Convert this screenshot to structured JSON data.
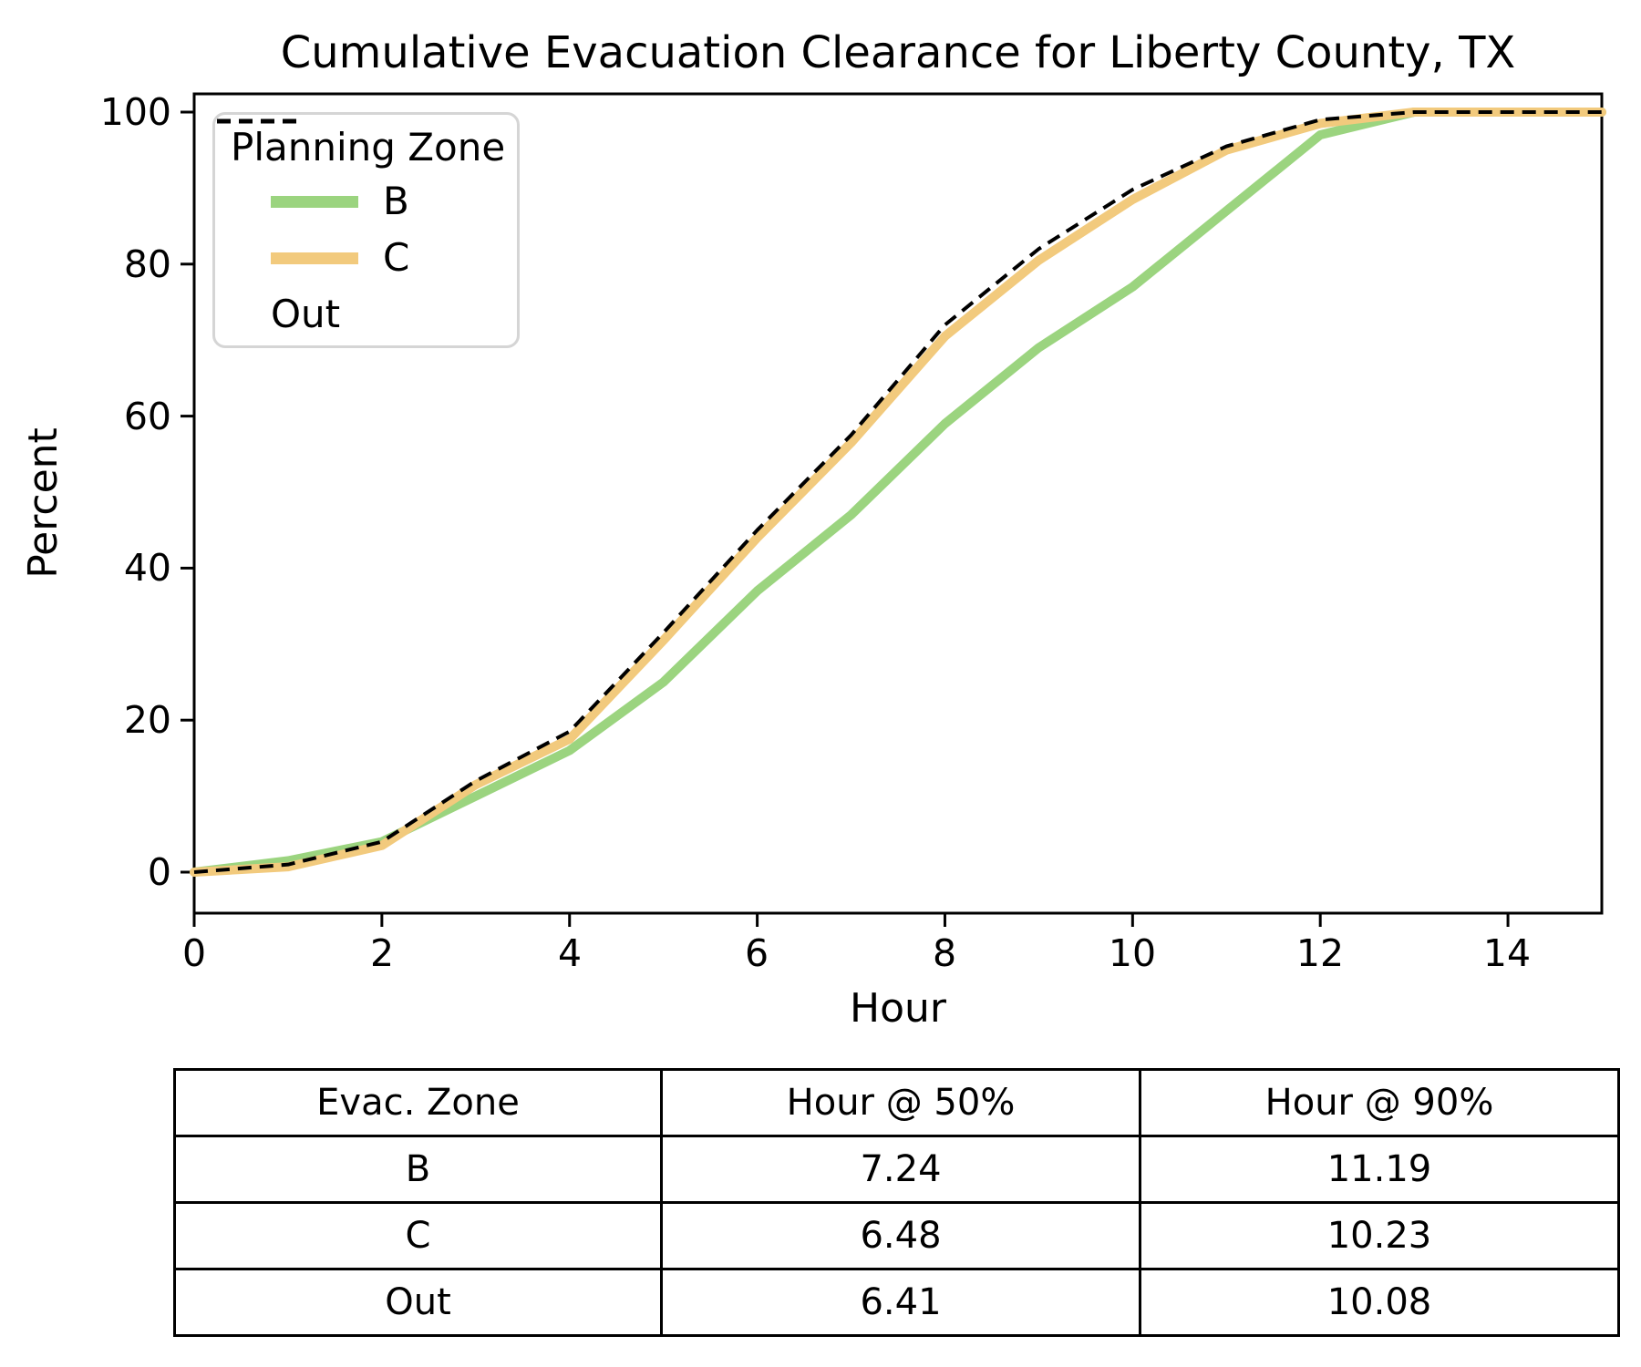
{
  "chart_data": {
    "type": "line",
    "title": "Cumulative Evacuation Clearance for Liberty County, TX",
    "xlabel": "Hour",
    "ylabel": "Percent",
    "xlim": [
      0,
      15
    ],
    "ylim": [
      0,
      100
    ],
    "grid": false,
    "xticks": [
      "0",
      "2",
      "4",
      "6",
      "8",
      "10",
      "12",
      "14"
    ],
    "yticks": [
      "0",
      "20",
      "40",
      "60",
      "80",
      "100"
    ],
    "legend": {
      "title": "Planning Zone",
      "position": "upper left"
    },
    "x": [
      0,
      1,
      2,
      3,
      4,
      5,
      6,
      7,
      8,
      9,
      10,
      11,
      12,
      13,
      14,
      15
    ],
    "series": [
      {
        "name": "B",
        "color": "#9bd47f",
        "style": "solid",
        "values": [
          0,
          1.5,
          4,
          10,
          16,
          25,
          37,
          47,
          59,
          69,
          77,
          87,
          97,
          100,
          100,
          100
        ]
      },
      {
        "name": "C",
        "color": "#f2ca7d",
        "style": "solid",
        "values": [
          0,
          0.7,
          3.5,
          11.5,
          17.5,
          30.5,
          44,
          56.5,
          70.5,
          80.5,
          88.5,
          95,
          98.5,
          100,
          100,
          100
        ]
      },
      {
        "name": "Out",
        "color": "#000000",
        "style": "dashed",
        "values": [
          0,
          1,
          4,
          12,
          18.5,
          31.5,
          45,
          57.5,
          72,
          82,
          89.8,
          95.5,
          99,
          100,
          100,
          100
        ]
      }
    ]
  },
  "table": {
    "headers": [
      "Evac. Zone",
      "Hour @ 50%",
      "Hour @ 90%"
    ],
    "rows": [
      {
        "zone": "B",
        "h50": "7.24",
        "h90": "11.19"
      },
      {
        "zone": "C",
        "h50": "6.48",
        "h90": "10.23"
      },
      {
        "zone": "Out",
        "h50": "6.41",
        "h90": "10.08"
      }
    ]
  }
}
